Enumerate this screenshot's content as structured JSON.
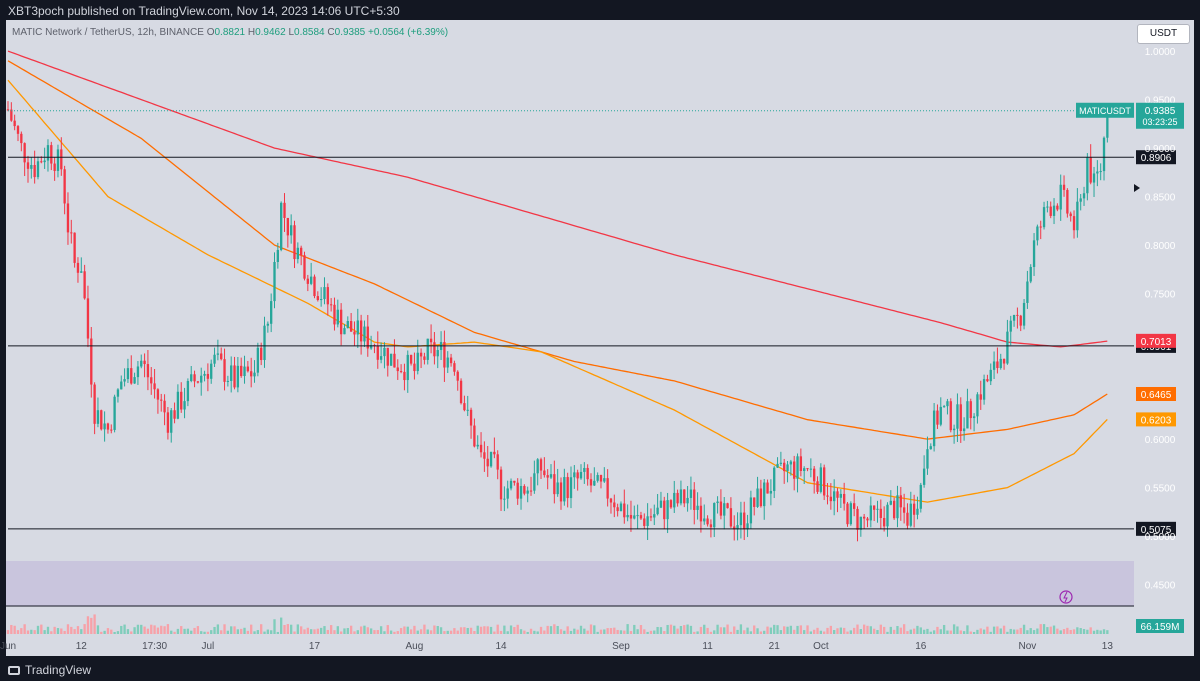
{
  "header": {
    "published": "XBT3poch published on TradingView.com, Nov 14, 2023 14:06 UTC+5:30"
  },
  "legend": {
    "symbol": "MATIC Network / TetherUS, 12h, BINANCE",
    "open_label": "O",
    "open": "0.8821",
    "high_label": "H",
    "high": "0.9462",
    "low_label": "L",
    "low": "0.8584",
    "close_label": "C",
    "close": "0.9385",
    "change": "+0.0564 (+6.39%)"
  },
  "currency_button": "USDT",
  "price_tag": {
    "symbol": "MATICUSDT",
    "price": "0.9385",
    "countdown": "03:23:25"
  },
  "volume_tag": "66.159M",
  "footer": {
    "brand": "TradingView"
  },
  "colors": {
    "up": "#26a69a",
    "down": "#f23645",
    "ma200": "#f23645",
    "ma100": "#ff6d00",
    "ma50": "#ff9800",
    "pane_bg": "#d7dae3",
    "dark_bg": "#131722"
  },
  "chart_data": {
    "type": "candlestick",
    "symbol": "MATIC Network / TetherUS",
    "interval": "12h",
    "exchange": "BINANCE",
    "ylim": [
      0.43,
      1.03
    ],
    "y_ticks": [
      "1.0000",
      "0.9500",
      "0.9000",
      "0.8500",
      "0.8000",
      "0.7500",
      "0.7000",
      "0.6500",
      "0.6000",
      "0.5500",
      "0.5000",
      "0.4500"
    ],
    "y_tick_values": [
      1.0,
      0.95,
      0.9,
      0.85,
      0.8,
      0.75,
      0.7,
      0.65,
      0.6,
      0.55,
      0.5,
      0.45
    ],
    "x_ticks": [
      "Jun",
      "12",
      "17:30",
      "Jul",
      "17",
      "Aug",
      "14",
      "Sep",
      "11",
      "21",
      "Oct",
      "16",
      "Nov",
      "13"
    ],
    "x_tick_days": [
      0,
      11,
      22,
      30,
      46,
      61,
      74,
      92,
      105,
      115,
      122,
      137,
      153,
      165
    ],
    "horizontal_levels": [
      {
        "value": 0.8906,
        "label": "0.8906"
      },
      {
        "value": 0.6961,
        "label": "0.6961"
      },
      {
        "value": 0.5075,
        "label": "0.5075"
      }
    ],
    "indicator_labels": [
      {
        "value": 0.7013,
        "label": "0.7013",
        "color": "#f23645"
      },
      {
        "value": 0.6465,
        "label": "0.6465",
        "color": "#ff6d00"
      },
      {
        "value": 0.6203,
        "label": "0.6203",
        "color": "#ff9800"
      }
    ],
    "last_price": 0.9385,
    "volume_last": "66.159M",
    "close_path": {
      "days": [
        0,
        2,
        4,
        6,
        8,
        9,
        10,
        11,
        13,
        15,
        17,
        20,
        24,
        28,
        31,
        34,
        37,
        39,
        41,
        43,
        46,
        48,
        50,
        52,
        55,
        58,
        61,
        63,
        65,
        67,
        69,
        71,
        73,
        74,
        76,
        78,
        80,
        82,
        84,
        86,
        88,
        90,
        92,
        94,
        96,
        99,
        102,
        105,
        107,
        110,
        114,
        117,
        120,
        123,
        125,
        128,
        131,
        133,
        135,
        137,
        138,
        140,
        142,
        144,
        146,
        148,
        150,
        152,
        154,
        156,
        158,
        160,
        161,
        162,
        163,
        164,
        165
      ],
      "values": [
        0.94,
        0.9,
        0.88,
        0.9,
        0.88,
        0.82,
        0.78,
        0.78,
        0.63,
        0.61,
        0.66,
        0.68,
        0.62,
        0.66,
        0.68,
        0.66,
        0.67,
        0.72,
        0.84,
        0.8,
        0.76,
        0.74,
        0.72,
        0.71,
        0.7,
        0.68,
        0.67,
        0.69,
        0.69,
        0.68,
        0.62,
        0.58,
        0.57,
        0.55,
        0.55,
        0.55,
        0.57,
        0.55,
        0.55,
        0.56,
        0.55,
        0.545,
        0.53,
        0.515,
        0.52,
        0.53,
        0.54,
        0.525,
        0.52,
        0.515,
        0.55,
        0.57,
        0.57,
        0.55,
        0.53,
        0.515,
        0.52,
        0.53,
        0.52,
        0.55,
        0.6,
        0.63,
        0.62,
        0.625,
        0.65,
        0.67,
        0.7,
        0.73,
        0.8,
        0.84,
        0.85,
        0.82,
        0.84,
        0.89,
        0.86,
        0.88,
        0.9385
      ]
    },
    "series": [
      {
        "name": "",
        "type": "ma",
        "color": "#f23645",
        "days": [
          0,
          20,
          40,
          60,
          80,
          100,
          120,
          140,
          150,
          158,
          165
        ],
        "values": [
          1.0,
          0.95,
          0.9,
          0.87,
          0.83,
          0.79,
          0.755,
          0.72,
          0.7,
          0.695,
          0.701
        ]
      },
      {
        "name": "",
        "type": "ma",
        "color": "#ff6d00",
        "days": [
          0,
          20,
          40,
          55,
          70,
          85,
          100,
          120,
          138,
          150,
          160,
          165
        ],
        "values": [
          0.99,
          0.91,
          0.8,
          0.76,
          0.71,
          0.68,
          0.66,
          0.62,
          0.6,
          0.61,
          0.625,
          0.6465
        ]
      },
      {
        "name": "",
        "type": "ma",
        "color": "#ff9800",
        "days": [
          0,
          15,
          30,
          45,
          55,
          60,
          70,
          80,
          100,
          120,
          138,
          150,
          160,
          165
        ],
        "values": [
          0.97,
          0.85,
          0.79,
          0.74,
          0.7,
          0.695,
          0.7,
          0.69,
          0.63,
          0.555,
          0.535,
          0.55,
          0.585,
          0.6203
        ]
      }
    ],
    "grid": false,
    "legend": "top-left"
  }
}
